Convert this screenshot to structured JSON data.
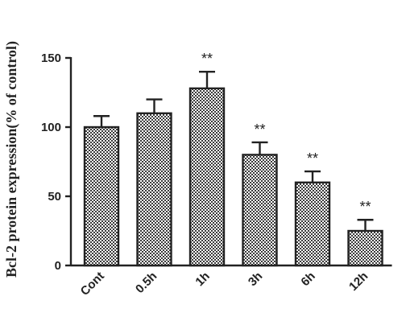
{
  "chart_data": {
    "type": "bar",
    "ylabel": "Bcl-2 protein expression(% of control)",
    "xlabel": "",
    "categories": [
      "Cont",
      "0.5h",
      "1h",
      "3h",
      "6h",
      "12h"
    ],
    "values": [
      100,
      110,
      128,
      80,
      60,
      25
    ],
    "errors": [
      8,
      10,
      12,
      9,
      8,
      8
    ],
    "significance": [
      "",
      "",
      "**",
      "**",
      "**",
      "**"
    ],
    "ylim": [
      0,
      150
    ],
    "yticks": [
      0,
      50,
      100,
      150
    ],
    "grid": false,
    "bar_fill": "checkered",
    "colors": {
      "bar_dark": "#3a3a3a",
      "bar_light": "#ffffff",
      "axis": "#222222"
    }
  }
}
